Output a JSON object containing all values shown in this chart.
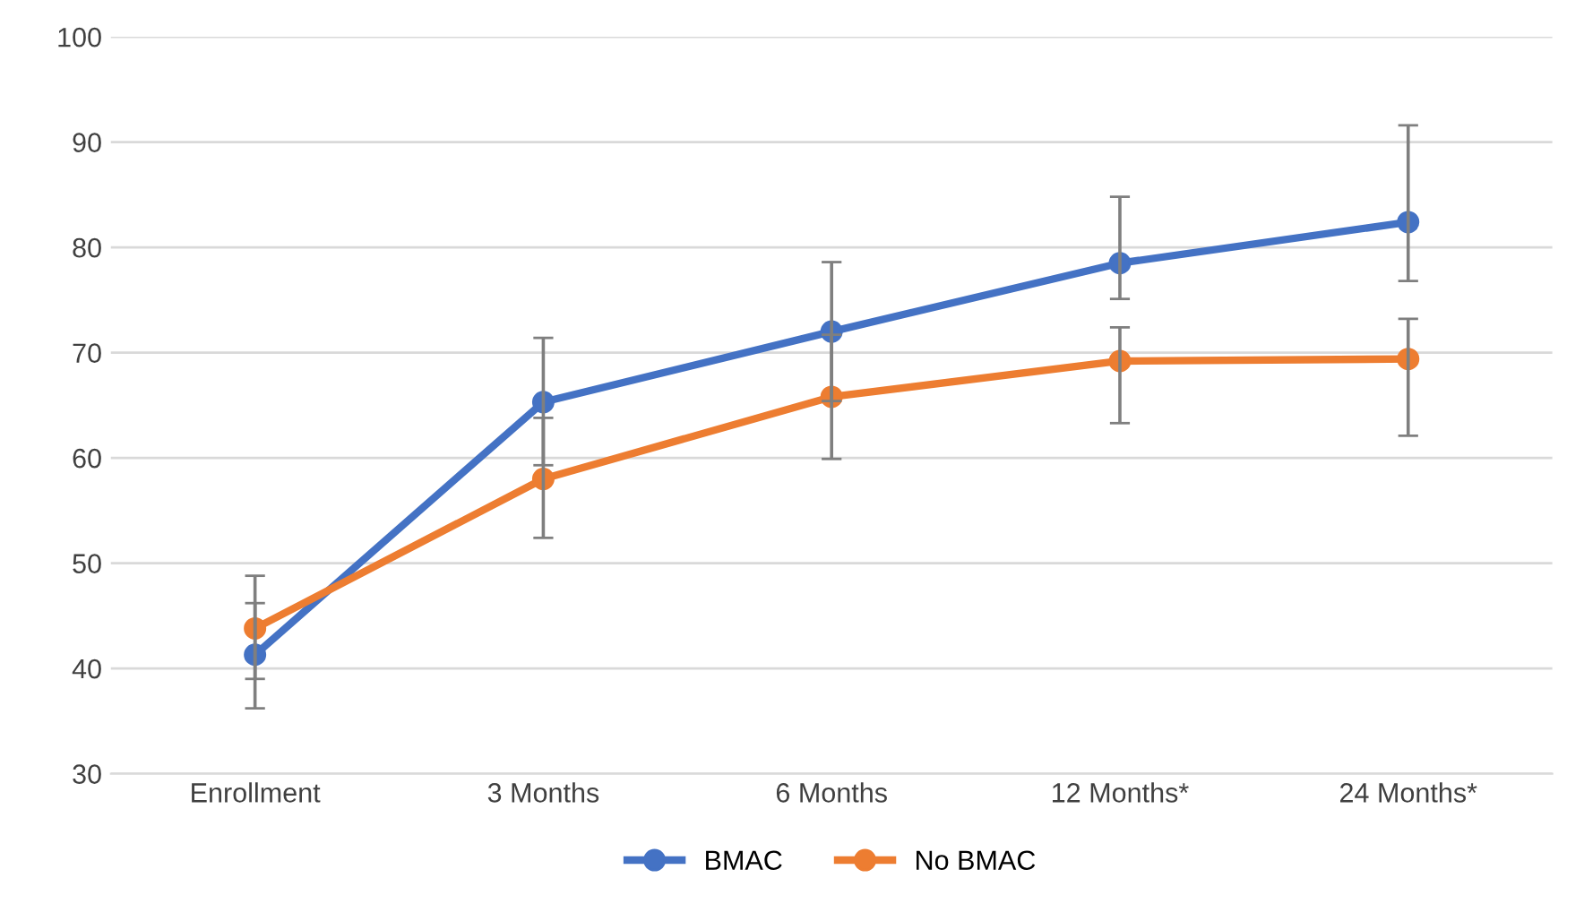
{
  "chart_data": {
    "type": "line",
    "categories": [
      "Enrollment",
      "3 Months",
      "6 Months",
      "12 Months*",
      "24 Months*"
    ],
    "series": [
      {
        "name": "BMAC",
        "color": "#4472c4",
        "values": [
          41.3,
          65.3,
          72.0,
          78.5,
          82.4
        ],
        "errors": [
          [
            36.2,
            46.2
          ],
          [
            59.3,
            71.4
          ],
          [
            65.4,
            78.6
          ],
          [
            75.1,
            84.8
          ],
          [
            76.8,
            91.6
          ]
        ]
      },
      {
        "name": "No BMAC",
        "color": "#ed7d31",
        "values": [
          43.8,
          58.0,
          65.8,
          69.2,
          69.4
        ],
        "errors": [
          [
            39.0,
            48.8
          ],
          [
            52.4,
            63.8
          ],
          [
            59.9,
            71.7
          ],
          [
            63.3,
            72.4
          ],
          [
            62.1,
            73.2
          ]
        ]
      }
    ],
    "ylim": [
      30,
      100
    ],
    "yticks": [
      30,
      40,
      50,
      60,
      70,
      80,
      90,
      100
    ],
    "grid": "y",
    "legend": "bottom",
    "marker": "circle",
    "line_style": "solid"
  }
}
